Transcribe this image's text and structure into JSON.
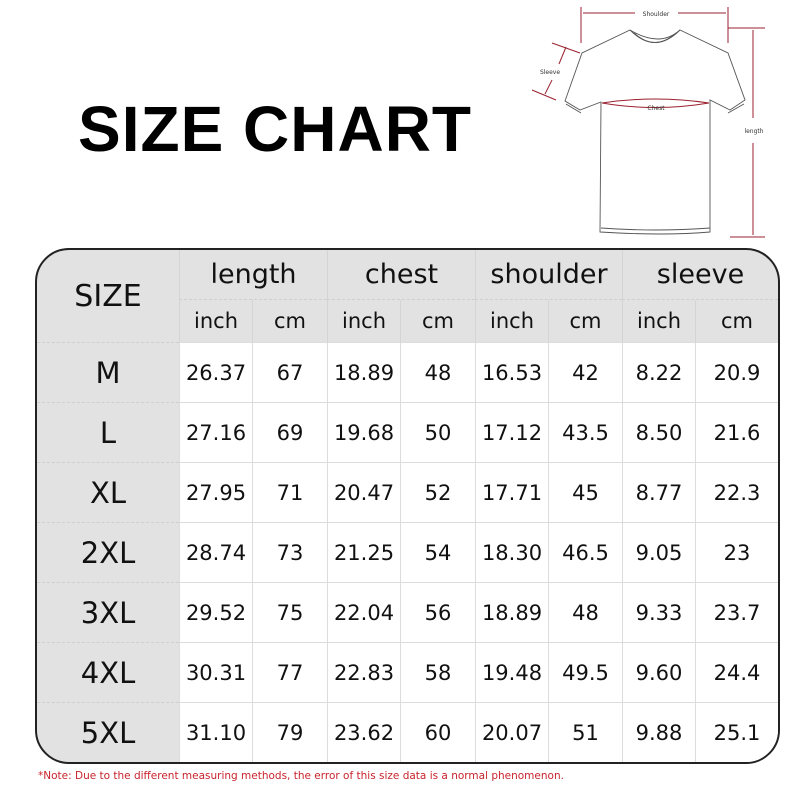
{
  "title": "SIZE CHART",
  "diagram": {
    "labels": {
      "shoulder": "Shoulder",
      "sleeve": "Sleeve",
      "chest": "Chest",
      "length": "length"
    },
    "arrow_color": "#9b2230"
  },
  "table": {
    "size_header": "SIZE",
    "groups": [
      "length",
      "chest",
      "shoulder",
      "sleeve"
    ],
    "units": [
      "inch",
      "cm",
      "inch",
      "cm",
      "inch",
      "cm",
      "inch",
      "cm"
    ],
    "rows": [
      {
        "size": "M",
        "values": [
          "26.37",
          "67",
          "18.89",
          "48",
          "16.53",
          "42",
          "8.22",
          "20.9"
        ]
      },
      {
        "size": "L",
        "values": [
          "27.16",
          "69",
          "19.68",
          "50",
          "17.12",
          "43.5",
          "8.50",
          "21.6"
        ]
      },
      {
        "size": "XL",
        "values": [
          "27.95",
          "71",
          "20.47",
          "52",
          "17.71",
          "45",
          "8.77",
          "22.3"
        ]
      },
      {
        "size": "2XL",
        "values": [
          "28.74",
          "73",
          "21.25",
          "54",
          "18.30",
          "46.5",
          "9.05",
          "23"
        ]
      },
      {
        "size": "3XL",
        "values": [
          "29.52",
          "75",
          "22.04",
          "56",
          "18.89",
          "48",
          "9.33",
          "23.7"
        ]
      },
      {
        "size": "4XL",
        "values": [
          "30.31",
          "77",
          "22.83",
          "58",
          "19.48",
          "49.5",
          "9.60",
          "24.4"
        ]
      },
      {
        "size": "5XL",
        "values": [
          "31.10",
          "79",
          "23.62",
          "60",
          "20.07",
          "51",
          "9.88",
          "25.1"
        ]
      }
    ]
  },
  "note": "*Note: Due to the different measuring methods, the error of this size data is a normal phenomenon."
}
